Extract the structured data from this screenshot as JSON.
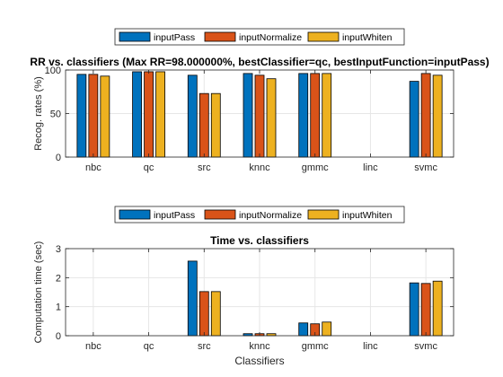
{
  "colors": {
    "inputPass": "#0072BD",
    "inputNormalize": "#D95319",
    "inputWhiten": "#EDB120",
    "axis": "#262626",
    "grid": "#e6e6e6",
    "background": "#ffffff"
  },
  "chart_data": [
    {
      "type": "bar",
      "title": "RR vs. classifiers (Max RR=98.000000%, bestClassifier=qc, bestInputFunction=inputPass)",
      "xlabel": "",
      "ylabel": "Recog. rates (%)",
      "ylim": [
        0,
        100
      ],
      "yticks": [
        0,
        50,
        100
      ],
      "grid": true,
      "legend_position": "top-center",
      "categories": [
        "nbc",
        "qc",
        "src",
        "knnc",
        "gmmc",
        "linc",
        "svmc"
      ],
      "series": [
        {
          "name": "inputPass",
          "values": [
            95,
            98,
            94,
            96,
            96,
            0,
            87
          ]
        },
        {
          "name": "inputNormalize",
          "values": [
            95,
            98,
            73,
            94,
            96,
            0,
            96
          ]
        },
        {
          "name": "inputWhiten",
          "values": [
            93,
            98,
            73,
            90,
            96,
            0,
            94
          ]
        }
      ]
    },
    {
      "type": "bar",
      "title": "Time vs. classifiers",
      "xlabel": "Classifiers",
      "ylabel": "Computation time (sec)",
      "ylim": [
        0,
        3
      ],
      "yticks": [
        0,
        1,
        2,
        3
      ],
      "grid": true,
      "legend_position": "top-center",
      "categories": [
        "nbc",
        "qc",
        "src",
        "knnc",
        "gmmc",
        "linc",
        "svmc"
      ],
      "series": [
        {
          "name": "inputPass",
          "values": [
            0,
            0,
            2.57,
            0.07,
            0.44,
            0,
            1.82
          ]
        },
        {
          "name": "inputNormalize",
          "values": [
            0,
            0,
            1.52,
            0.07,
            0.41,
            0,
            1.8
          ]
        },
        {
          "name": "inputWhiten",
          "values": [
            0,
            0,
            1.52,
            0.07,
            0.47,
            0,
            1.88
          ]
        }
      ]
    }
  ]
}
